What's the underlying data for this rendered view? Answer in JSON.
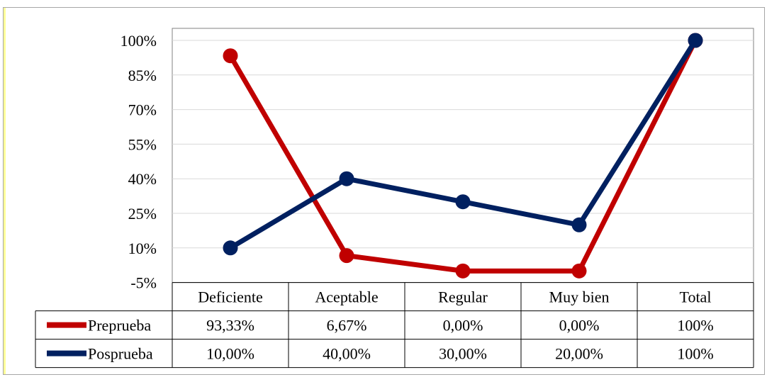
{
  "chart_data": {
    "type": "line",
    "categories": [
      "Deficiente",
      "Aceptable",
      "Regular",
      "Muy bien",
      "Total"
    ],
    "series": [
      {
        "name": "Preprueba",
        "values": [
          93.33,
          6.67,
          0,
          0,
          100
        ],
        "labels": [
          "93,33%",
          "6,67%",
          "0,00%",
          "0,00%",
          "100%"
        ],
        "color": "#c00000"
      },
      {
        "name": "Posprueba",
        "values": [
          10,
          40,
          30,
          20,
          100
        ],
        "labels": [
          "10,00%",
          "40,00%",
          "30,00%",
          "20,00%",
          "100%"
        ],
        "color": "#002060"
      }
    ],
    "yticks": [
      -5,
      10,
      25,
      40,
      55,
      70,
      85,
      100
    ],
    "ytick_labels": [
      "-5%",
      "10%",
      "25%",
      "40%",
      "55%",
      "70%",
      "85%",
      "100%"
    ],
    "ylim": [
      -5,
      100
    ],
    "grid": true,
    "data_table": true,
    "title": "",
    "xlabel": "",
    "ylabel": ""
  },
  "colors": {
    "gridline": "#d9d9d9",
    "border": "#a6a6a6",
    "table_border": "#000000",
    "left_accent": "#ffff99"
  }
}
